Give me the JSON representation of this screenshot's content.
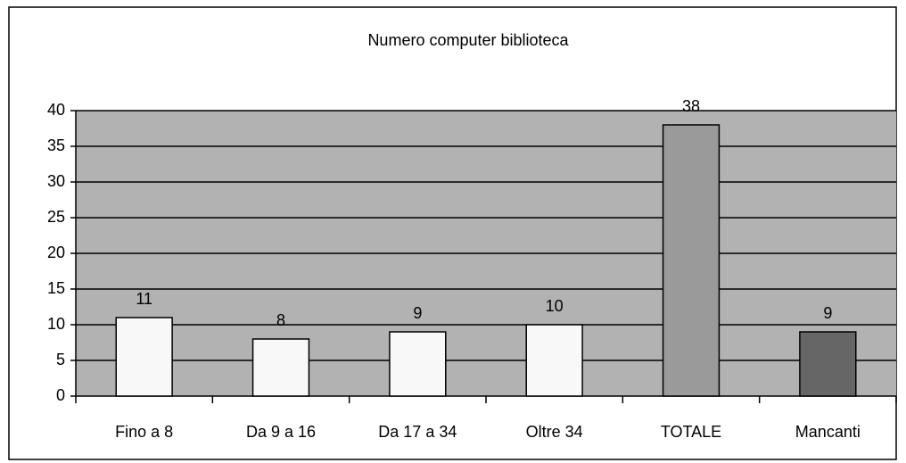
{
  "chart_data": {
    "type": "bar",
    "title": "Numero computer biblioteca",
    "categories": [
      "Fino a 8",
      "Da 9 a 16",
      "Da 17 a 34",
      "Oltre 34",
      "TOTALE",
      "Mancanti"
    ],
    "values": [
      11,
      8,
      9,
      10,
      38,
      9
    ],
    "colors": [
      "#f8f8f8",
      "#f8f8f8",
      "#f8f8f8",
      "#f8f8f8",
      "#9a9a9a",
      "#666666"
    ],
    "ylim": [
      0,
      40
    ],
    "yticks": [
      0,
      5,
      10,
      15,
      20,
      25,
      30,
      35,
      40
    ],
    "grid": true
  }
}
